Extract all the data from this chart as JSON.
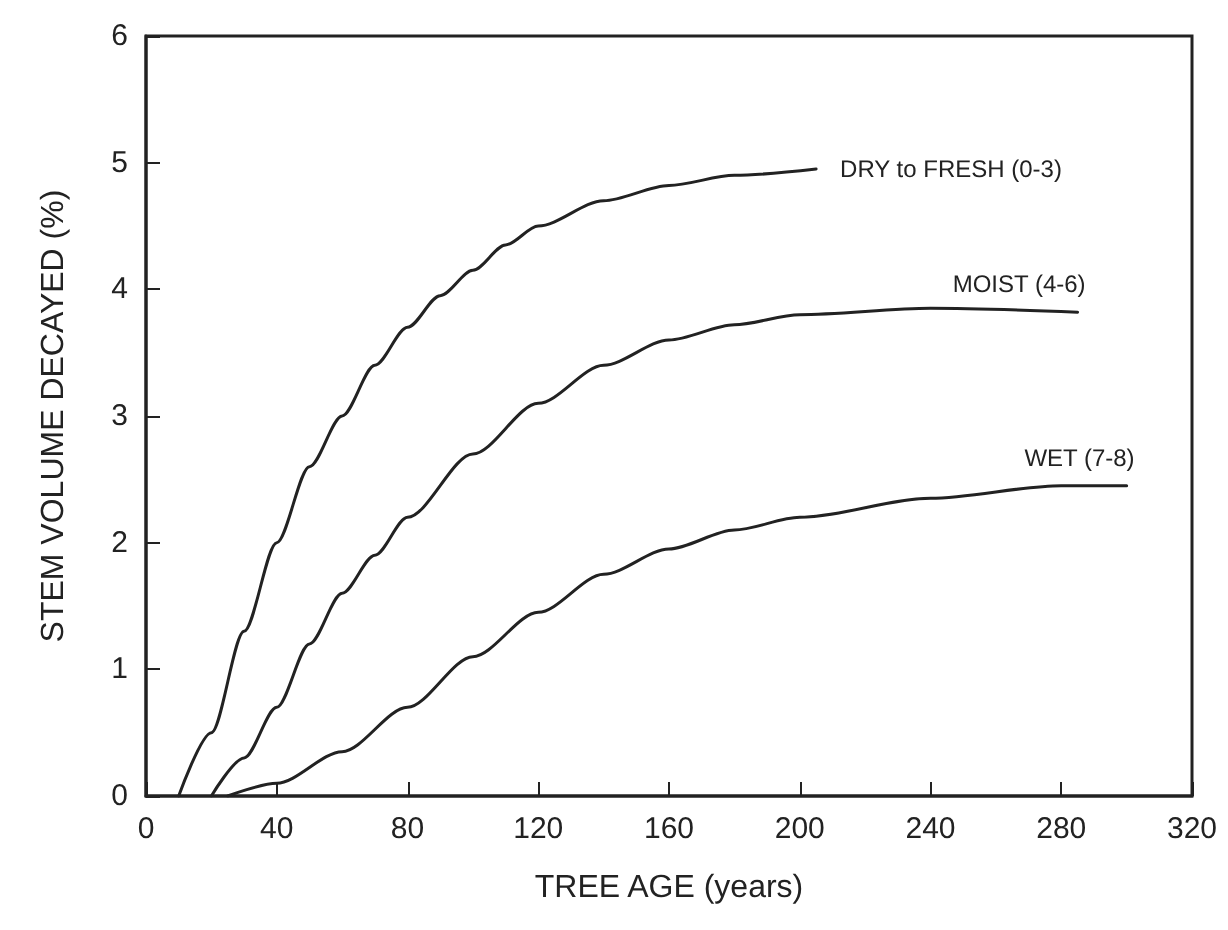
{
  "chart_data": {
    "type": "line",
    "xlabel": "TREE AGE (years)",
    "ylabel": "STEM VOLUME DECAYED (%)",
    "xlim": [
      0,
      320
    ],
    "xticks": [
      0,
      40,
      80,
      120,
      160,
      200,
      240,
      280,
      320
    ],
    "ylim": [
      0,
      6
    ],
    "yticks": [
      0,
      1,
      2,
      3,
      4,
      5,
      6
    ],
    "grid": false,
    "legend": false,
    "marker": "none",
    "line_style": "solid",
    "series": [
      {
        "name": "DRY to FRESH (0-3)",
        "color": "#222222",
        "x": [
          10,
          20,
          30,
          40,
          50,
          60,
          70,
          80,
          90,
          100,
          110,
          120,
          140,
          160,
          180,
          205
        ],
        "values": [
          0,
          0.5,
          1.3,
          2.0,
          2.6,
          3.0,
          3.4,
          3.7,
          3.95,
          4.15,
          4.35,
          4.5,
          4.7,
          4.82,
          4.9,
          4.95
        ]
      },
      {
        "name": "MOIST (4-6)",
        "color": "#222222",
        "x": [
          20,
          30,
          40,
          50,
          60,
          70,
          80,
          100,
          120,
          140,
          160,
          180,
          200,
          240,
          285
        ],
        "values": [
          0,
          0.3,
          0.7,
          1.2,
          1.6,
          1.9,
          2.2,
          2.7,
          3.1,
          3.4,
          3.6,
          3.72,
          3.8,
          3.85,
          3.82
        ]
      },
      {
        "name": "WET (7-8)",
        "color": "#222222",
        "x": [
          25,
          40,
          60,
          80,
          100,
          120,
          140,
          160,
          180,
          200,
          240,
          280,
          300
        ],
        "values": [
          0,
          0.1,
          0.35,
          0.7,
          1.1,
          1.45,
          1.75,
          1.95,
          2.1,
          2.2,
          2.35,
          2.45,
          2.45
        ]
      }
    ]
  }
}
